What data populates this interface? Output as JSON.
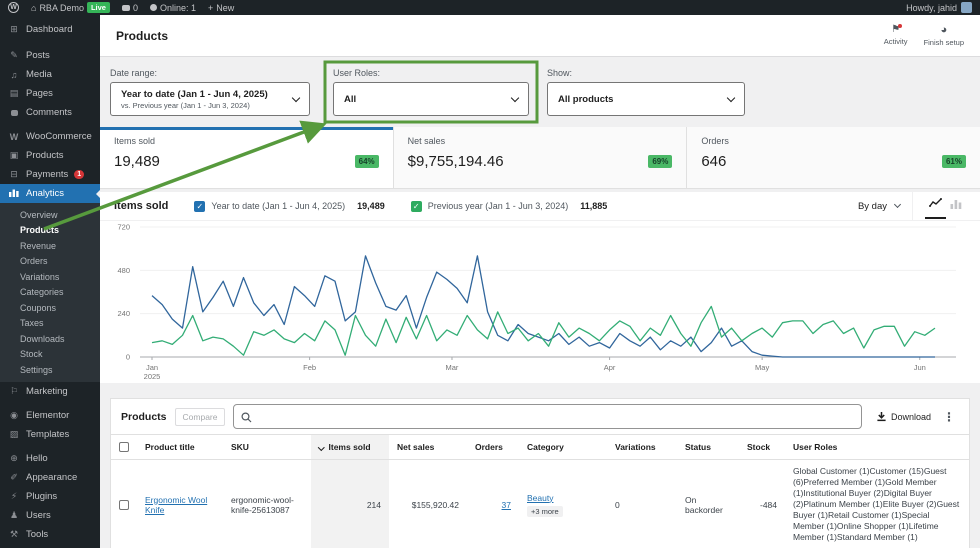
{
  "admin_bar": {
    "site": "RBA Demo",
    "live": "Live",
    "comments_count": "0",
    "online": "Online: 1",
    "new_label": "New",
    "howdy": "Howdy, jahid"
  },
  "sidebar": {
    "items": [
      {
        "label": "Dashboard"
      },
      {
        "label": "Posts"
      },
      {
        "label": "Media"
      },
      {
        "label": "Pages"
      },
      {
        "label": "Comments"
      },
      {
        "label": "WooCommerce"
      },
      {
        "label": "Products"
      },
      {
        "label": "Payments",
        "badge": "1"
      },
      {
        "label": "Analytics"
      },
      {
        "label": "Marketing"
      },
      {
        "label": "Elementor"
      },
      {
        "label": "Templates"
      },
      {
        "label": "Hello"
      },
      {
        "label": "Appearance"
      },
      {
        "label": "Plugins"
      },
      {
        "label": "Users"
      },
      {
        "label": "Tools"
      }
    ],
    "submenu": [
      "Overview",
      "Products",
      "Revenue",
      "Orders",
      "Variations",
      "Categories",
      "Coupons",
      "Taxes",
      "Downloads",
      "Stock",
      "Settings"
    ]
  },
  "header": {
    "title": "Products",
    "activity": "Activity",
    "finish_setup": "Finish setup"
  },
  "filters": {
    "date_range": {
      "label": "Date range:",
      "value": "Year to date (Jan 1 - Jun 4, 2025)",
      "compare": "vs. Previous year (Jan 1 - Jun 3, 2024)"
    },
    "user_roles": {
      "label": "User Roles:",
      "value": "All"
    },
    "show": {
      "label": "Show:",
      "value": "All products"
    }
  },
  "stats": [
    {
      "label": "Items sold",
      "value": "19,489",
      "badge": "64%"
    },
    {
      "label": "Net sales",
      "value": "$9,755,194.46",
      "badge": "69%"
    },
    {
      "label": "Orders",
      "value": "646",
      "badge": "61%"
    }
  ],
  "chart_header": {
    "title": "Items sold",
    "legend": [
      {
        "label": "Year to date (Jan 1 - Jun 4, 2025)",
        "value": "19,489",
        "color": "#2271b1"
      },
      {
        "label": "Previous year (Jan 1 - Jun 3, 2024)",
        "value": "11,885",
        "color": "#2eab5f"
      }
    ],
    "interval": "By day"
  },
  "chart_data": {
    "type": "line",
    "title": "Items sold by day",
    "ylim": [
      0,
      720
    ],
    "yticks": [
      0,
      240,
      480,
      720
    ],
    "total_days": 154,
    "xticks": [
      {
        "label": "Jan",
        "sub": "2025",
        "day": 0
      },
      {
        "label": "Feb",
        "day": 31
      },
      {
        "label": "Mar",
        "day": 59
      },
      {
        "label": "Apr",
        "day": 90
      },
      {
        "label": "May",
        "day": 120
      },
      {
        "label": "Jun",
        "day": 151
      }
    ],
    "series": [
      {
        "name": "Year to date (Jan 1 - Jun 4, 2025)",
        "color": "#31669c",
        "total": 19489,
        "values": [
          340,
          290,
          210,
          160,
          500,
          250,
          330,
          420,
          280,
          440,
          300,
          230,
          290,
          180,
          390,
          340,
          280,
          450,
          420,
          200,
          250,
          560,
          410,
          280,
          260,
          340,
          160,
          330,
          470,
          430,
          380,
          300,
          560,
          250,
          120,
          90,
          180,
          130,
          110,
          90,
          130,
          70,
          110,
          60,
          80,
          50,
          130,
          90,
          60,
          110,
          40,
          90,
          60,
          110,
          30,
          80,
          160,
          60,
          90,
          30,
          10,
          5,
          0,
          0,
          0,
          0,
          0,
          0,
          0,
          0,
          0,
          0,
          0,
          0,
          0,
          0,
          0,
          0
        ]
      },
      {
        "name": "Previous year (Jan 1 - Jun 3, 2024)",
        "color": "#33ad76",
        "total": 11885,
        "values": [
          80,
          90,
          70,
          120,
          230,
          90,
          110,
          100,
          60,
          10,
          140,
          120,
          150,
          100,
          80,
          130,
          90,
          200,
          150,
          10,
          230,
          120,
          60,
          210,
          80,
          220,
          100,
          230,
          90,
          150,
          120,
          230,
          150,
          100,
          250,
          130,
          160,
          90,
          130,
          60,
          190,
          110,
          160,
          130,
          90,
          150,
          200,
          170,
          90,
          160,
          120,
          230,
          130,
          60,
          190,
          280,
          110,
          160,
          90,
          130,
          160,
          110,
          190,
          200,
          200,
          130,
          180,
          200,
          130,
          160,
          50,
          150,
          170,
          170,
          60,
          140,
          120,
          160
        ]
      }
    ],
    "legend_position": "top",
    "grid": true
  },
  "table": {
    "title": "Products",
    "compare": "Compare",
    "download": "Download",
    "search_placeholder": "",
    "columns": [
      "Product title",
      "SKU",
      "Items sold",
      "Net sales",
      "Orders",
      "Category",
      "Variations",
      "Status",
      "Stock",
      "User Roles"
    ],
    "rows": [
      {
        "product": "Ergonomic Wool Knife",
        "sku": "ergonomic-wool-knife-25613087",
        "items_sold": "214",
        "net_sales": "$155,920.42",
        "orders": "37",
        "category": "Beauty",
        "category_more": "+3 more",
        "variations": "0",
        "status": "On backorder",
        "stock": "-484",
        "user_roles": "Global Customer (1)Customer (15)Guest (6)Preferred Member (1)Gold Member (1)Institutional Buyer (2)Digital Buyer (2)Platinum Member (1)Elite Buyer (2)Guest Buyer (1)Retail Customer (1)Special Member (1)Online Shopper (1)Lifetime Member (1)Standard Member (1)"
      }
    ]
  },
  "colors": {
    "accent_blue": "#2271b1",
    "annotation_green": "#579a3d",
    "badge_green": "#4ab866",
    "sidebar_bg": "#1d2327",
    "content_bg": "#f0f0f1"
  }
}
